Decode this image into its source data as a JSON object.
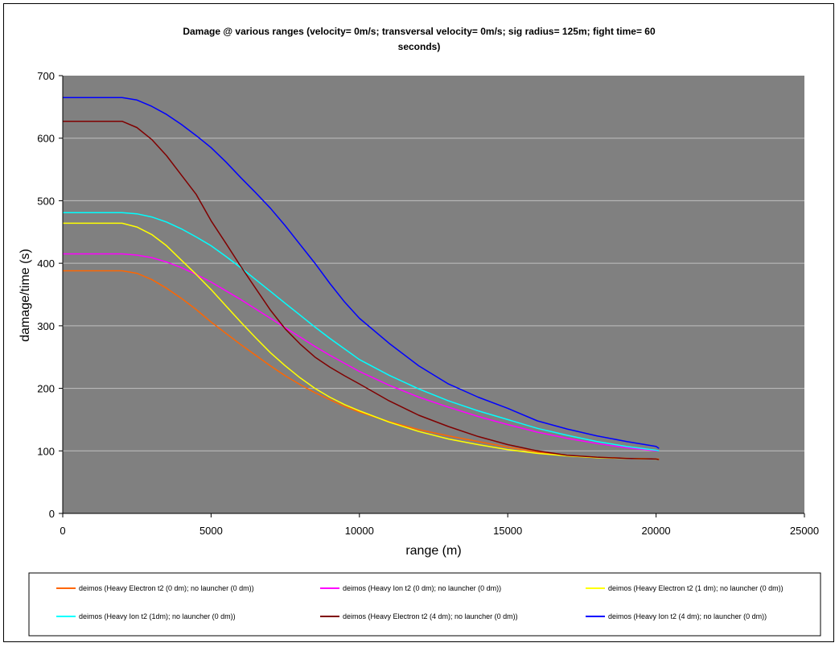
{
  "chart_data": {
    "type": "line",
    "title_line1": "Damage @ various ranges (velocity= 0m/s; transversal velocity= 0m/s; sig radius= 125m; fight time= 60",
    "title_line2": "seconds)",
    "xlabel": "range (m)",
    "ylabel": "damage/time (s)",
    "xlim": [
      0,
      25000
    ],
    "ylim": [
      0,
      700
    ],
    "xticks": [
      0,
      5000,
      10000,
      15000,
      20000,
      25000
    ],
    "yticks": [
      0,
      100,
      200,
      300,
      400,
      500,
      600,
      700
    ],
    "grid": "horizontal",
    "plot_background": "#808080",
    "legend_position": "bottom",
    "series": [
      {
        "name": "deimos (Heavy Electron t2 (0 dm); no launcher (0 dm))",
        "color": "#FF6600",
        "x": [
          0,
          1000,
          2000,
          2500,
          3000,
          3500,
          4000,
          4500,
          5000,
          5500,
          6000,
          6500,
          7000,
          7500,
          8000,
          8500,
          9000,
          9500,
          10000,
          11000,
          12000,
          13000,
          14000,
          15000,
          16000,
          17000,
          18000,
          19000,
          20000,
          20100
        ],
        "y": [
          388,
          388,
          388,
          384,
          374,
          360,
          344,
          326,
          306,
          288,
          270,
          253,
          236,
          220,
          206,
          193,
          182,
          171,
          162,
          147,
          134,
          124,
          115,
          106,
          98,
          93,
          90,
          88,
          87,
          87
        ]
      },
      {
        "name": "deimos (Heavy Ion t2 (0 dm); no launcher (0 dm))",
        "color": "#FF00FF",
        "x": [
          0,
          1000,
          2000,
          2500,
          3000,
          3500,
          4000,
          4500,
          5000,
          5500,
          6000,
          6500,
          7000,
          7500,
          8000,
          8500,
          9000,
          9500,
          10000,
          11000,
          12000,
          13000,
          14000,
          15000,
          16000,
          17000,
          18000,
          19000,
          20000,
          20100
        ],
        "y": [
          415,
          415,
          415,
          413,
          409,
          402,
          393,
          382,
          370,
          356,
          342,
          327,
          312,
          297,
          282,
          267,
          253,
          240,
          227,
          205,
          186,
          170,
          155,
          142,
          130,
          120,
          112,
          105,
          100,
          100
        ]
      },
      {
        "name": "deimos (Heavy Electron t2 (1 dm); no launcher (0 dm))",
        "color": "#FFFF00",
        "x": [
          0,
          1000,
          2000,
          2500,
          3000,
          3500,
          4000,
          4500,
          5000,
          5500,
          6000,
          6500,
          7000,
          7500,
          8000,
          8500,
          9000,
          9500,
          10000,
          11000,
          12000,
          13000,
          14000,
          15000,
          16000,
          17000,
          18000,
          19000,
          20000,
          20100
        ],
        "y": [
          464,
          464,
          464,
          458,
          446,
          428,
          405,
          382,
          358,
          332,
          306,
          281,
          257,
          236,
          217,
          200,
          186,
          174,
          164,
          146,
          131,
          119,
          110,
          102,
          96,
          92,
          89,
          88,
          87,
          86
        ]
      },
      {
        "name": "deimos (Heavy Ion t2 (1dm); no launcher (0 dm))",
        "color": "#00FFFF",
        "x": [
          0,
          1000,
          2000,
          2500,
          3000,
          3500,
          4000,
          4500,
          5000,
          5500,
          6000,
          6500,
          7000,
          7500,
          8000,
          8500,
          9000,
          9500,
          10000,
          11000,
          12000,
          13000,
          14000,
          15000,
          16000,
          17000,
          18000,
          19000,
          20000,
          20100
        ],
        "y": [
          481,
          481,
          481,
          479,
          474,
          466,
          455,
          442,
          428,
          411,
          393,
          374,
          355,
          336,
          317,
          298,
          280,
          263,
          246,
          221,
          199,
          180,
          164,
          150,
          136,
          125,
          115,
          107,
          101,
          100
        ]
      },
      {
        "name": "deimos (Heavy Electron t2 (4 dm); no launcher (0 dm))",
        "color": "#800000",
        "x": [
          0,
          1000,
          2000,
          2500,
          3000,
          3500,
          4000,
          4500,
          5000,
          5500,
          6000,
          6500,
          7000,
          7500,
          8000,
          8500,
          9000,
          9500,
          10000,
          11000,
          12000,
          13000,
          14000,
          15000,
          16000,
          17000,
          18000,
          19000,
          20000,
          20100
        ],
        "y": [
          627,
          627,
          627,
          617,
          598,
          572,
          541,
          510,
          468,
          432,
          395,
          360,
          325,
          295,
          271,
          250,
          234,
          220,
          207,
          180,
          157,
          139,
          123,
          110,
          100,
          93,
          90,
          88,
          87,
          86
        ]
      },
      {
        "name": "deimos (Heavy Ion t2 (4 dm); no launcher (0 dm))",
        "color": "#0000FF",
        "x": [
          0,
          1000,
          2000,
          2500,
          3000,
          3500,
          4000,
          4500,
          5000,
          5500,
          6000,
          6500,
          7000,
          7500,
          8000,
          8500,
          9000,
          9500,
          10000,
          11000,
          12000,
          13000,
          14000,
          15000,
          16000,
          17000,
          18000,
          19000,
          20000,
          20100
        ],
        "y": [
          665,
          665,
          665,
          661,
          651,
          638,
          622,
          604,
          585,
          562,
          537,
          513,
          488,
          460,
          430,
          400,
          368,
          338,
          312,
          272,
          236,
          207,
          186,
          168,
          148,
          135,
          124,
          115,
          107,
          104
        ]
      }
    ]
  }
}
